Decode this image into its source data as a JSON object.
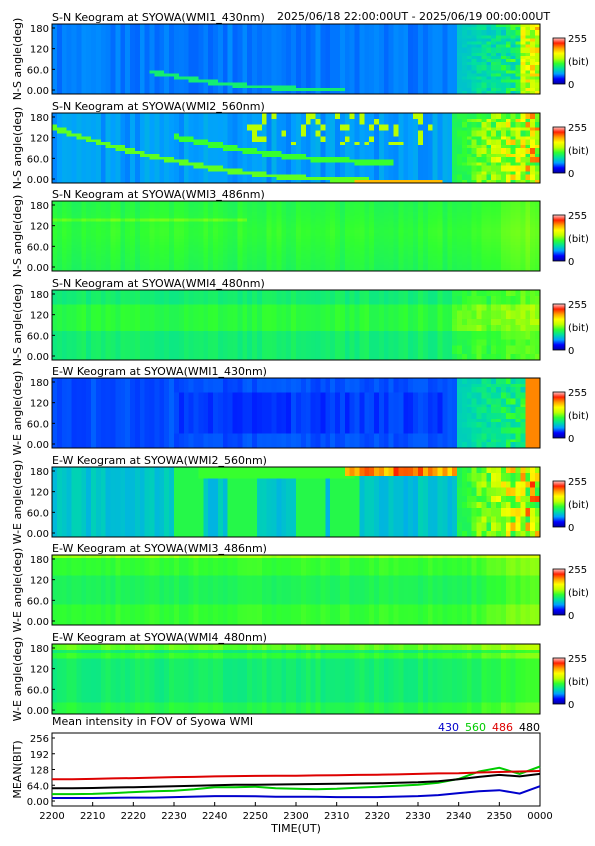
{
  "header": {
    "time_range": "2025/06/18 22:00:00UT - 2025/06/19 00:00:00UT"
  },
  "colorbar": {
    "max": "255",
    "unit": "(bit)",
    "min": "0",
    "stops": [
      "#0000a0",
      "#0000ff",
      "#00a0ff",
      "#00e0a0",
      "#30ff30",
      "#c0ff00",
      "#ffff00",
      "#ffa000",
      "#ff2000",
      "#ffc8c8"
    ]
  },
  "chart_data": [
    {
      "type": "heatmap",
      "title": "S-N Keogram at SYOWA(WMI1_430nm)",
      "ylabel": "N-S angle(deg)",
      "yticks": [
        "180",
        "120",
        "60.0",
        "0.00"
      ],
      "ylim": [
        0,
        180
      ],
      "profile": "sn_430"
    },
    {
      "type": "heatmap",
      "title": "S-N Keogram at SYOWA(WMI2_560nm)",
      "ylabel": "N-S angle(deg)",
      "yticks": [
        "180",
        "120",
        "60.0",
        "0.00"
      ],
      "ylim": [
        0,
        180
      ],
      "profile": "sn_560"
    },
    {
      "type": "heatmap",
      "title": "S-N Keogram at SYOWA(WMI3_486nm)",
      "ylabel": "N-S angle(deg)",
      "yticks": [
        "180",
        "120",
        "60.0",
        "0.00"
      ],
      "ylim": [
        0,
        180
      ],
      "profile": "sn_486"
    },
    {
      "type": "heatmap",
      "title": "S-N Keogram at SYOWA(WMI4_480nm)",
      "ylabel": "N-S angle(deg)",
      "yticks": [
        "180",
        "120",
        "60.0",
        "0.00"
      ],
      "ylim": [
        0,
        180
      ],
      "profile": "sn_480"
    },
    {
      "type": "heatmap",
      "title": "E-W Keogram at SYOWA(WMI1_430nm)",
      "ylabel": "W-E angle(deg)",
      "yticks": [
        "180",
        "120",
        "60.0",
        "0.00"
      ],
      "ylim": [
        0,
        180
      ],
      "profile": "ew_430"
    },
    {
      "type": "heatmap",
      "title": "E-W Keogram at SYOWA(WMI2_560nm)",
      "ylabel": "W-E angle(deg)",
      "yticks": [
        "180",
        "120",
        "60.0",
        "0.00"
      ],
      "ylim": [
        0,
        180
      ],
      "profile": "ew_560"
    },
    {
      "type": "heatmap",
      "title": "E-W Keogram at SYOWA(WMI3_486nm)",
      "ylabel": "W-E angle(deg)",
      "yticks": [
        "180",
        "120",
        "60.0",
        "0.00"
      ],
      "ylim": [
        0,
        180
      ],
      "profile": "ew_486"
    },
    {
      "type": "heatmap",
      "title": "E-W Keogram at SYOWA(WMI4_480nm)",
      "ylabel": "W-E angle(deg)",
      "yticks": [
        "180",
        "120",
        "60.0",
        "0.00"
      ],
      "ylim": [
        0,
        180
      ],
      "profile": "ew_480"
    },
    {
      "type": "line",
      "title": "Mean intensity in FOV of Syowa WMI",
      "ylabel": "MEAN(BIT)",
      "xlabel": "TIME(UT)",
      "ylim": [
        0,
        256
      ],
      "yticks": [
        "256",
        "192",
        "128",
        "64.0",
        "0.00"
      ],
      "x": [
        0,
        5,
        10,
        15,
        20,
        25,
        30,
        35,
        40,
        45,
        50,
        55,
        60,
        65,
        70,
        75,
        80,
        85,
        90,
        95,
        100,
        105,
        110,
        115,
        120
      ],
      "xticks": [
        "2200",
        "2210",
        "2220",
        "2230",
        "2240",
        "2250",
        "2300",
        "2310",
        "2320",
        "2330",
        "2340",
        "2350",
        "0000"
      ],
      "series": [
        {
          "name": "430",
          "color": "#0000cc",
          "values": [
            12,
            12,
            12,
            13,
            14,
            14,
            16,
            18,
            20,
            20,
            19,
            17,
            17,
            17,
            16,
            16,
            16,
            18,
            20,
            24,
            32,
            40,
            44,
            30,
            60
          ]
        },
        {
          "name": "560",
          "color": "#00cc00",
          "values": [
            28,
            28,
            29,
            32,
            36,
            40,
            42,
            48,
            56,
            56,
            58,
            52,
            50,
            48,
            50,
            54,
            58,
            62,
            66,
            74,
            90,
            120,
            135,
            110,
            140
          ]
        },
        {
          "name": "486",
          "color": "#dd0000",
          "values": [
            88,
            88,
            90,
            92,
            93,
            95,
            97,
            98,
            100,
            101,
            102,
            103,
            103,
            104,
            105,
            106,
            107,
            108,
            110,
            112,
            113,
            116,
            118,
            120,
            122
          ]
        },
        {
          "name": "480",
          "color": "#000000",
          "values": [
            52,
            52,
            53,
            55,
            56,
            58,
            60,
            62,
            64,
            66,
            66,
            67,
            68,
            69,
            70,
            71,
            72,
            74,
            76,
            80,
            88,
            98,
            106,
            100,
            110
          ]
        }
      ]
    }
  ]
}
